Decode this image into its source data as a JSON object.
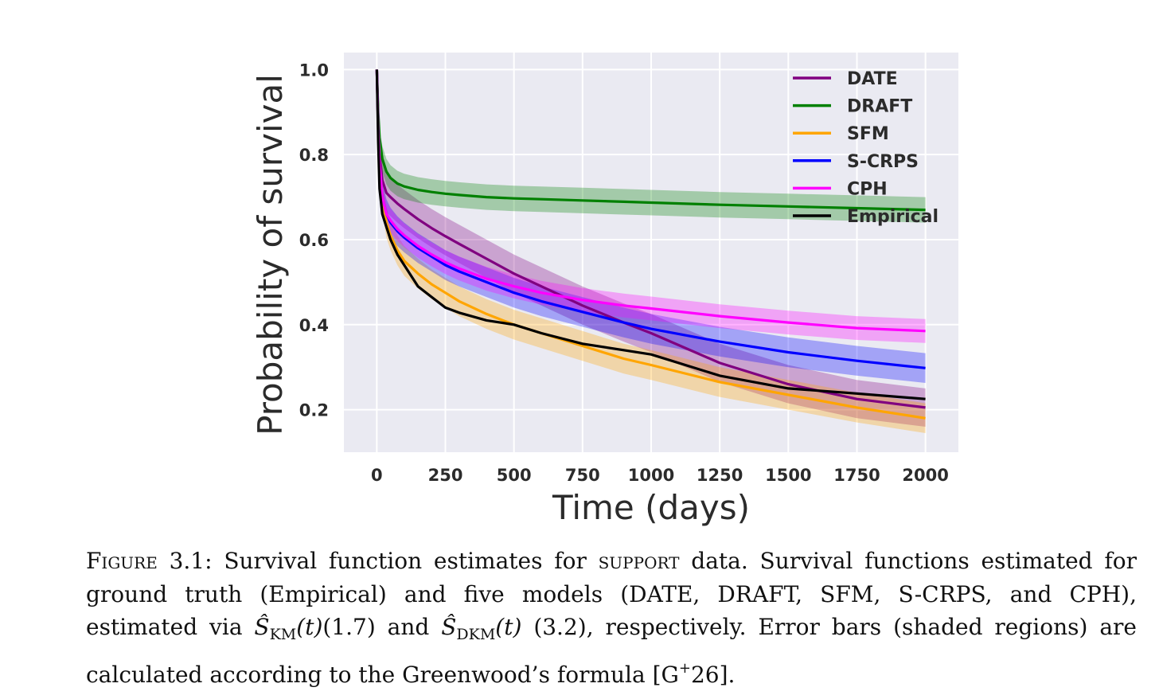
{
  "chart_data": {
    "type": "line",
    "xlabel": "Time (days)",
    "ylabel": "Probability of survival",
    "xlim": [
      -120,
      2120
    ],
    "ylim": [
      0.1,
      1.04
    ],
    "xticks": [
      0,
      250,
      500,
      750,
      1000,
      1250,
      1500,
      1750,
      2000
    ],
    "yticks": [
      0.2,
      0.4,
      0.6,
      0.8,
      1.0
    ],
    "ytick_labels": [
      "0.2",
      "0.4",
      "0.6",
      "0.8",
      "1.0"
    ],
    "grid": true,
    "legend": "top-right",
    "x": [
      0,
      5,
      10,
      20,
      35,
      50,
      75,
      100,
      150,
      200,
      250,
      300,
      400,
      500,
      600,
      750,
      900,
      1000,
      1250,
      1500,
      1750,
      2000
    ],
    "series": [
      {
        "name": "DATE",
        "color": "#800080",
        "values": [
          1.0,
          0.88,
          0.8,
          0.74,
          0.71,
          0.7,
          0.685,
          0.672,
          0.648,
          0.627,
          0.608,
          0.59,
          0.555,
          0.52,
          0.49,
          0.445,
          0.405,
          0.38,
          0.31,
          0.26,
          0.225,
          0.205
        ],
        "band": 0.045
      },
      {
        "name": "DRAFT",
        "color": "#008000",
        "values": [
          1.0,
          0.9,
          0.84,
          0.79,
          0.76,
          0.745,
          0.732,
          0.725,
          0.717,
          0.712,
          0.708,
          0.705,
          0.7,
          0.697,
          0.695,
          0.692,
          0.689,
          0.687,
          0.682,
          0.678,
          0.674,
          0.67
        ],
        "band": 0.03
      },
      {
        "name": "SFM",
        "color": "#FFA500",
        "values": [
          1.0,
          0.86,
          0.77,
          0.7,
          0.64,
          0.61,
          0.575,
          0.55,
          0.52,
          0.495,
          0.475,
          0.455,
          0.425,
          0.4,
          0.38,
          0.35,
          0.32,
          0.305,
          0.265,
          0.235,
          0.205,
          0.18
        ],
        "band": 0.035
      },
      {
        "name": "S-CRPS",
        "color": "#0000FF",
        "values": [
          1.0,
          0.86,
          0.77,
          0.7,
          0.66,
          0.64,
          0.62,
          0.605,
          0.58,
          0.56,
          0.54,
          0.525,
          0.5,
          0.475,
          0.455,
          0.43,
          0.405,
          0.39,
          0.36,
          0.335,
          0.315,
          0.298
        ],
        "band": 0.035
      },
      {
        "name": "CPH",
        "color": "#FF00FF",
        "values": [
          1.0,
          0.86,
          0.78,
          0.7,
          0.66,
          0.645,
          0.625,
          0.61,
          0.585,
          0.565,
          0.547,
          0.532,
          0.508,
          0.49,
          0.475,
          0.458,
          0.445,
          0.438,
          0.42,
          0.405,
          0.392,
          0.385
        ],
        "band": 0.028
      },
      {
        "name": "Empirical",
        "color": "#000000",
        "values": [
          1.0,
          0.83,
          0.72,
          0.66,
          0.63,
          0.6,
          0.565,
          0.54,
          0.49,
          0.465,
          0.44,
          0.428,
          0.41,
          0.4,
          0.38,
          0.355,
          0.34,
          0.33,
          0.28,
          0.25,
          0.238,
          0.225
        ],
        "band": 0
      }
    ]
  },
  "caption": {
    "figure_label": "Figure 3.1:",
    "text_1": "Survival function estimates for",
    "dataset": "support",
    "text_2": "data. Survival functions estimated for ground truth (Empirical) and five models (DATE, DRAFT, SFM, S-CRPS, and CPH), estimated via",
    "s_hat": "Ŝ",
    "km": "KM",
    "t_arg": "(t)",
    "ref_1": "(1.7) and",
    "dkm": "DKM",
    "text_3": "(3.2), respectively. Error bars (shaded regions) are calculated according to the Greenwood’s formula [G",
    "plus": "+",
    "text_4": "26]."
  }
}
